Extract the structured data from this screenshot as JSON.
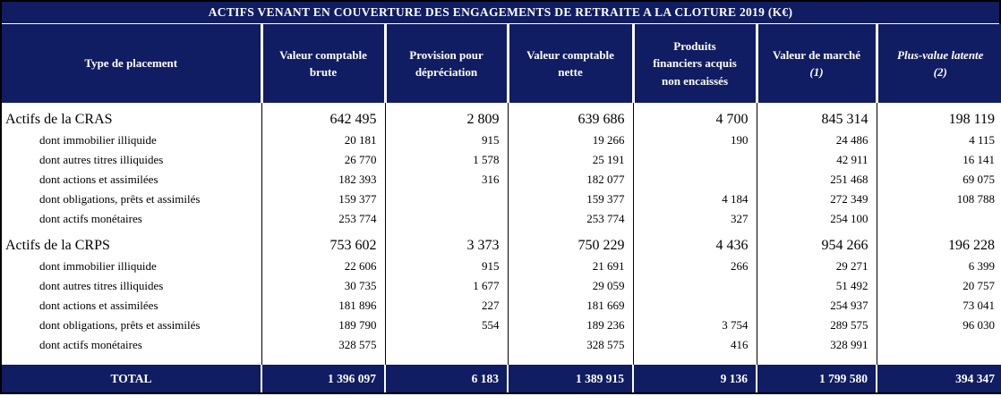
{
  "title": "ACTIFS VENANT EN COUVERTURE DES ENGAGEMENTS DE RETRAITE A LA CLOTURE 2019 (K€)",
  "colors": {
    "navy": "#101D62",
    "header_text": "#FFFFFF",
    "body_text": "#000000",
    "border": "#000000"
  },
  "columns": [
    {
      "title": "Type de placement",
      "note": ""
    },
    {
      "title": "Valeur comptable\nbrute",
      "note": ""
    },
    {
      "title": "Provision pour\ndépréciation",
      "note": ""
    },
    {
      "title": "Valeur comptable\nnette",
      "note": ""
    },
    {
      "title": "Produits\nfinanciers acquis\nnon encaissés",
      "note": ""
    },
    {
      "title": "Valeur de marché",
      "note": "(1)"
    },
    {
      "title": "Plus-value latente",
      "note": "(2)"
    }
  ],
  "rows": [
    {
      "type": "group",
      "label": "Actifs de la CRAS",
      "values": [
        "642 495",
        "2 809",
        "639 686",
        "4 700",
        "845 314",
        "198 119"
      ]
    },
    {
      "type": "sub",
      "label": "dont immobilier illiquide",
      "values": [
        "20 181",
        "915",
        "19 266",
        "190",
        "24 486",
        "4 115"
      ]
    },
    {
      "type": "sub",
      "label": "dont autres titres illiquides",
      "values": [
        "26 770",
        "1 578",
        "25 191",
        "",
        "42 911",
        "16 141"
      ]
    },
    {
      "type": "sub",
      "label": "dont actions et assimilées",
      "values": [
        "182 393",
        "316",
        "182 077",
        "",
        "251 468",
        "69 075"
      ]
    },
    {
      "type": "sub",
      "label": "dont obligations, prêts et assimilés",
      "values": [
        "159 377",
        "",
        "159 377",
        "4 184",
        "272 349",
        "108 788"
      ]
    },
    {
      "type": "sub",
      "label": "dont actifs monétaires",
      "values": [
        "253 774",
        "",
        "253 774",
        "327",
        "254 100",
        ""
      ]
    },
    {
      "type": "group",
      "label": "Actifs de la CRPS",
      "values": [
        "753 602",
        "3 373",
        "750 229",
        "4 436",
        "954 266",
        "196 228"
      ]
    },
    {
      "type": "sub",
      "label": "dont immobilier illiquide",
      "values": [
        "22 606",
        "915",
        "21 691",
        "266",
        "29 271",
        "6 399"
      ]
    },
    {
      "type": "sub",
      "label": "dont autres titres illiquides",
      "values": [
        "30 735",
        "1 677",
        "29 059",
        "",
        "51 492",
        "20 757"
      ]
    },
    {
      "type": "sub",
      "label": "dont actions et assimilées",
      "values": [
        "181 896",
        "227",
        "181 669",
        "",
        "254 937",
        "73 041"
      ]
    },
    {
      "type": "sub",
      "label": "dont obligations, prêts et assimilés",
      "values": [
        "189 790",
        "554",
        "189 236",
        "3 754",
        "289 575",
        "96 030"
      ]
    },
    {
      "type": "sub",
      "label": "dont actifs monétaires",
      "values": [
        "328 575",
        "",
        "328 575",
        "416",
        "328 991",
        ""
      ]
    }
  ],
  "total": {
    "label": "TOTAL",
    "values": [
      "1 396 097",
      "6 183",
      "1 389 915",
      "9 136",
      "1 799 580",
      "394 347"
    ]
  }
}
